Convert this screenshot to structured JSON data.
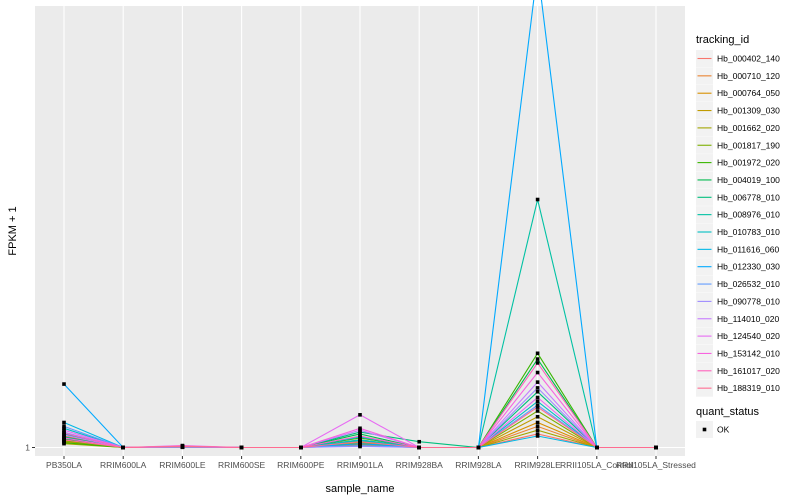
{
  "chart_data": {
    "type": "line",
    "xlabel": "sample_name",
    "ylabel": "FPKM + 1",
    "categories": [
      "PB350LA",
      "RRIM600LA",
      "RRIM600LE",
      "RRIM600SE",
      "RRIM600PE",
      "RRIM901LA",
      "RRIM928BA",
      "RRIM928LA",
      "RRIM928LE",
      "RRII105LA_Control",
      "RRII105LA_Stressed"
    ],
    "y_ticks": [
      {
        "value": 1,
        "label": "1"
      }
    ],
    "ylim": [
      0,
      220
    ],
    "grid": true,
    "legend": {
      "title": "tracking_id",
      "position": "right",
      "shape_title": "quant_status",
      "shape_items": [
        "OK"
      ]
    },
    "series": [
      {
        "name": "Hb_000402_140",
        "color": "#F8766D",
        "values": [
          6,
          1,
          1.5,
          1,
          1,
          3,
          1,
          1,
          8,
          1,
          1
        ]
      },
      {
        "name": "Hb_000710_120",
        "color": "#EA8331",
        "values": [
          7,
          1,
          1.4,
          1,
          1,
          5,
          1,
          1,
          12,
          1,
          1
        ]
      },
      {
        "name": "Hb_000764_050",
        "color": "#D89000",
        "values": [
          4,
          1,
          1.3,
          1,
          1,
          2.5,
          1,
          1,
          14,
          1,
          1
        ]
      },
      {
        "name": "Hb_001309_030",
        "color": "#C09B00",
        "values": [
          5,
          1,
          1.2,
          1,
          1,
          3.5,
          1,
          1,
          17,
          1,
          1
        ]
      },
      {
        "name": "Hb_001662_020",
        "color": "#A3A500",
        "values": [
          3,
          1,
          1.1,
          1,
          1,
          2,
          1,
          1,
          10,
          1,
          1
        ]
      },
      {
        "name": "Hb_001817_190",
        "color": "#7CAE00",
        "values": [
          4.5,
          1,
          1.2,
          1,
          1,
          4,
          1,
          1,
          20,
          1,
          1
        ]
      },
      {
        "name": "Hb_001972_020",
        "color": "#39B600",
        "values": [
          3.5,
          1,
          1.5,
          1,
          1,
          6,
          1,
          1,
          50,
          1,
          1
        ]
      },
      {
        "name": "Hb_004019_100",
        "color": "#00BB4E",
        "values": [
          5.5,
          1,
          1.3,
          1,
          1,
          8,
          1,
          1,
          47,
          1,
          1
        ]
      },
      {
        "name": "Hb_006778_010",
        "color": "#00BF7D",
        "values": [
          6.5,
          1,
          1.4,
          1,
          1,
          9,
          4,
          1,
          30,
          1,
          1
        ]
      },
      {
        "name": "Hb_008976_010",
        "color": "#00C1A3",
        "values": [
          8,
          1,
          1.6,
          1,
          1,
          4.5,
          1,
          1,
          130,
          1,
          1
        ]
      },
      {
        "name": "Hb_010783_010",
        "color": "#00BFC4",
        "values": [
          11,
          1,
          1.3,
          1,
          1,
          5,
          1,
          1,
          25,
          1,
          1
        ]
      },
      {
        "name": "Hb_011616_060",
        "color": "#00B8E7",
        "values": [
          14,
          1,
          1.2,
          1,
          1,
          6.5,
          1,
          1,
          7,
          1,
          1
        ]
      },
      {
        "name": "Hb_012330_030",
        "color": "#00A9FF",
        "values": [
          34,
          1,
          1.5,
          1,
          1,
          3,
          1,
          1,
          250,
          1,
          1
        ]
      },
      {
        "name": "Hb_026532_010",
        "color": "#619CFF",
        "values": [
          12,
          1,
          1.4,
          1,
          1,
          2,
          1,
          1,
          23,
          1,
          1
        ]
      },
      {
        "name": "Hb_090778_010",
        "color": "#9F8CFF",
        "values": [
          9,
          1,
          1.2,
          1,
          1,
          1.5,
          1,
          1,
          32,
          1,
          1
        ]
      },
      {
        "name": "Hb_114010_020",
        "color": "#C77CFF",
        "values": [
          7.5,
          1,
          1.3,
          1,
          1,
          10,
          1,
          1,
          35,
          1,
          1
        ]
      },
      {
        "name": "Hb_124540_020",
        "color": "#E76BF3",
        "values": [
          10,
          1,
          2,
          1,
          1,
          18,
          1,
          1,
          27,
          1,
          1
        ]
      },
      {
        "name": "Hb_153142_010",
        "color": "#F863DF",
        "values": [
          6,
          1,
          1.8,
          1,
          1,
          11,
          1,
          1,
          40,
          1,
          1
        ]
      },
      {
        "name": "Hb_161017_020",
        "color": "#FF62BC",
        "values": [
          8.5,
          1,
          1.7,
          1,
          1,
          7,
          1,
          1,
          45,
          1,
          1
        ]
      },
      {
        "name": "Hb_188319_010",
        "color": "#FF6C91",
        "values": [
          5,
          1,
          1.6,
          1,
          1,
          4,
          1,
          1,
          22,
          1,
          1
        ]
      }
    ]
  }
}
